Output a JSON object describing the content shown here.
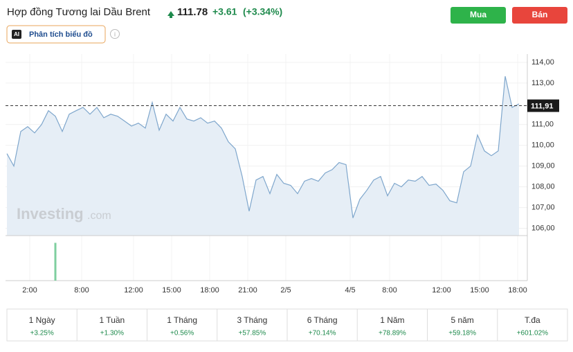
{
  "header": {
    "title": "Hợp đồng Tương lai Dầu Brent",
    "price": "111.78",
    "change": "+3.61",
    "change_pct": "(+3.34%)",
    "buy": "Mua",
    "sell": "Bán",
    "ai_badge": "AI",
    "analysis": "Phân tích biểu đồ"
  },
  "watermark": {
    "brand": "Investing",
    "suffix": ".com"
  },
  "chart_data": {
    "type": "line",
    "color": "#7ea6cc",
    "fill": "#e6eef6",
    "values": [
      109.6,
      109.0,
      110.67,
      110.9,
      110.6,
      111.0,
      111.67,
      111.4,
      110.67,
      111.5,
      111.67,
      111.83,
      111.5,
      111.83,
      111.33,
      111.5,
      111.4,
      111.17,
      110.93,
      111.07,
      110.83,
      112.07,
      110.73,
      111.5,
      111.17,
      111.83,
      111.27,
      111.17,
      111.33,
      111.07,
      111.17,
      110.83,
      110.17,
      109.83,
      108.5,
      106.83,
      108.33,
      108.5,
      107.67,
      108.6,
      108.17,
      108.07,
      107.67,
      108.27,
      108.4,
      108.27,
      108.67,
      108.83,
      109.17,
      109.07,
      106.5,
      107.4,
      107.83,
      108.33,
      108.5,
      107.57,
      108.17,
      108.0,
      108.33,
      108.27,
      108.5,
      108.07,
      108.13,
      107.83,
      107.33,
      107.23,
      108.73,
      109.0,
      110.5,
      109.73,
      109.5,
      109.73,
      113.33,
      111.83,
      112.0
    ],
    "xlim": [
      0,
      74
    ],
    "xticks": [
      {
        "value": 3.3,
        "label": "2:00"
      },
      {
        "value": 10.8,
        "label": "8:00"
      },
      {
        "value": 18.3,
        "label": "12:00"
      },
      {
        "value": 23.8,
        "label": "15:00"
      },
      {
        "value": 29.3,
        "label": "18:00"
      },
      {
        "value": 34.8,
        "label": "21:00"
      },
      {
        "value": 40.3,
        "label": "2/5"
      },
      {
        "value": 49.6,
        "label": "4/5"
      },
      {
        "value": 55.3,
        "label": "8:00"
      },
      {
        "value": 62.8,
        "label": "12:00"
      },
      {
        "value": 68.3,
        "label": "15:00"
      },
      {
        "value": 73.8,
        "label": "18:00"
      }
    ],
    "ylim": [
      105.65,
      114.4
    ],
    "yticks": [
      {
        "value": 106,
        "label": "106,00"
      },
      {
        "value": 107,
        "label": "107,00"
      },
      {
        "value": 108,
        "label": "108,00"
      },
      {
        "value": 109,
        "label": "109,00"
      },
      {
        "value": 110,
        "label": "110,00"
      },
      {
        "value": 111,
        "label": "111,00"
      },
      {
        "value": 113,
        "label": "113,00"
      },
      {
        "value": 114,
        "label": "114,00"
      }
    ],
    "ref_line": {
      "value": 111.91,
      "label": "111,91"
    },
    "volume": {
      "x": [
        7
      ],
      "values": [
        1
      ],
      "ylim": [
        0,
        1.1
      ],
      "color": "#7fcf9f"
    }
  },
  "periods": [
    {
      "label": "1 Ngày",
      "change": "+3.25%"
    },
    {
      "label": "1 Tuần",
      "change": "+1.30%"
    },
    {
      "label": "1 Tháng",
      "change": "+0.56%"
    },
    {
      "label": "3 Tháng",
      "change": "+57.85%"
    },
    {
      "label": "6 Tháng",
      "change": "+70.14%"
    },
    {
      "label": "1 Năm",
      "change": "+78.89%"
    },
    {
      "label": "5 năm",
      "change": "+59.18%"
    },
    {
      "label": "T.đa",
      "change": "+601.02%"
    }
  ]
}
